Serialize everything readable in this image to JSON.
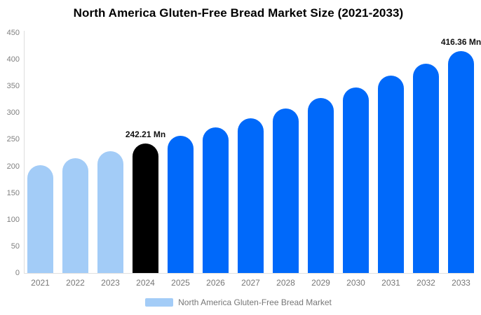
{
  "title": "North America Gluten-Free Bread Market Size (2021-2033)",
  "legend": {
    "label": "North America Gluten-Free Bread Market",
    "swatch_color": "#a3ccf7"
  },
  "colors": {
    "light_blue": "#a3ccf7",
    "bright_blue": "#0069fa",
    "highlight_black": "#000000",
    "axis_line": "#dddddd",
    "tick_text": "#808080",
    "annotation_text": "#111111",
    "title_text": "#000000"
  },
  "chart_data": {
    "type": "bar",
    "title": "North America Gluten-Free Bread Market Size (2021-2033)",
    "unit": "Mn",
    "categories": [
      "2021",
      "2022",
      "2023",
      "2024",
      "2025",
      "2026",
      "2027",
      "2028",
      "2029",
      "2030",
      "2031",
      "2032",
      "2033"
    ],
    "values": [
      202.2,
      214.8,
      228.2,
      242.21,
      257.3,
      273.3,
      290.3,
      308.3,
      327.5,
      347.8,
      369.4,
      392.4,
      416.36
    ],
    "bar_colors": [
      "#a3ccf7",
      "#a3ccf7",
      "#a3ccf7",
      "#000000",
      "#0069fa",
      "#0069fa",
      "#0069fa",
      "#0069fa",
      "#0069fa",
      "#0069fa",
      "#0069fa",
      "#0069fa",
      "#0069fa"
    ],
    "ylim": [
      0,
      450
    ],
    "ytick_step": 50,
    "ytick_labels": [
      "0",
      "50",
      "100",
      "150",
      "200",
      "250",
      "300",
      "350",
      "400",
      "450"
    ],
    "grid": false,
    "legend_position": "bottom",
    "legend_entries": [
      "North America Gluten-Free Bread Market"
    ],
    "annotations": [
      {
        "category": "2024",
        "text": "242.21 Mn"
      },
      {
        "category": "2033",
        "text": "416.36 Mn"
      }
    ]
  }
}
